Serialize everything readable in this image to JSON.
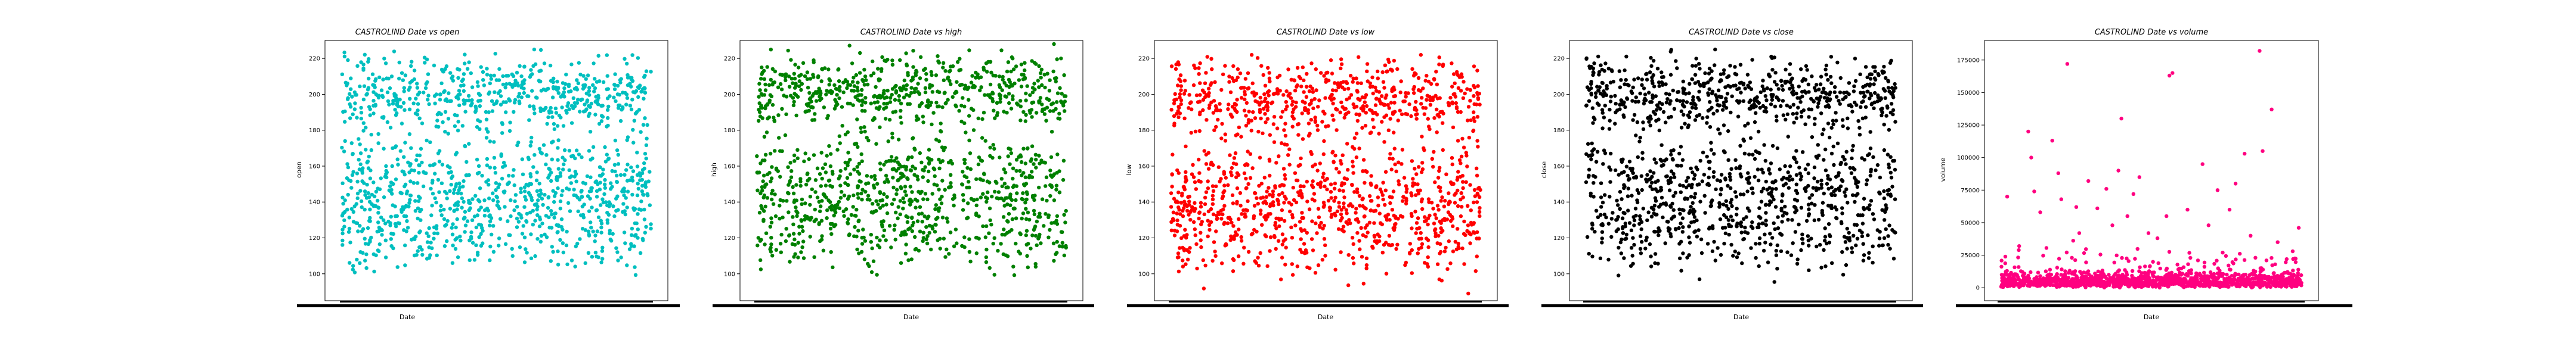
{
  "figure": {
    "charts": [
      {
        "title": "CASTROLIND Date vs open",
        "xlabel": "Date",
        "ylabel": "open"
      },
      {
        "title": "CASTROLIND Date vs high",
        "xlabel": "Date",
        "ylabel": "high"
      },
      {
        "title": "CASTROLIND Date vs low",
        "xlabel": "Date",
        "ylabel": "low"
      },
      {
        "title": "CASTROLIND Date vs close",
        "xlabel": "Date",
        "ylabel": "close"
      },
      {
        "title": "CASTROLIND Date vs volume",
        "xlabel": "Date",
        "ylabel": "volume"
      }
    ]
  },
  "chart_data": [
    {
      "type": "scatter",
      "title": "CASTROLIND Date vs open",
      "xlabel": "Date",
      "ylabel": "open",
      "color": "#00bfbf",
      "ylim": [
        85,
        230
      ],
      "yticks": [
        100,
        120,
        140,
        160,
        180,
        200,
        220
      ],
      "x_tick_labels_visible": false,
      "grid": false,
      "value_bands": [
        {
          "center": 200,
          "spread": 12,
          "share": 0.4
        },
        {
          "center": 152,
          "spread": 14,
          "share": 0.33
        },
        {
          "center": 125,
          "spread": 14,
          "share": 0.27
        }
      ],
      "range": [
        90,
        225
      ]
    },
    {
      "type": "scatter",
      "title": "CASTROLIND Date vs high",
      "xlabel": "Date",
      "ylabel": "high",
      "color": "#008000",
      "ylim": [
        85,
        230
      ],
      "yticks": [
        100,
        120,
        140,
        160,
        180,
        200,
        220
      ],
      "x_tick_labels_visible": false,
      "grid": false,
      "value_bands": [
        {
          "center": 202,
          "spread": 12,
          "share": 0.4
        },
        {
          "center": 154,
          "spread": 14,
          "share": 0.33
        },
        {
          "center": 127,
          "spread": 14,
          "share": 0.27
        }
      ],
      "range": [
        91,
        228
      ]
    },
    {
      "type": "scatter",
      "title": "CASTROLIND Date vs low",
      "xlabel": "Date",
      "ylabel": "low",
      "color": "#ff0000",
      "ylim": [
        85,
        230
      ],
      "yticks": [
        100,
        120,
        140,
        160,
        180,
        200,
        220
      ],
      "x_tick_labels_visible": false,
      "grid": false,
      "value_bands": [
        {
          "center": 198,
          "spread": 12,
          "share": 0.4
        },
        {
          "center": 150,
          "spread": 14,
          "share": 0.33
        },
        {
          "center": 123,
          "spread": 14,
          "share": 0.27
        }
      ],
      "range": [
        89,
        222
      ]
    },
    {
      "type": "scatter",
      "title": "CASTROLIND Date vs close",
      "xlabel": "Date",
      "ylabel": "close",
      "color": "#000000",
      "ylim": [
        85,
        230
      ],
      "yticks": [
        100,
        120,
        140,
        160,
        180,
        200,
        220
      ],
      "x_tick_labels_visible": false,
      "grid": false,
      "value_bands": [
        {
          "center": 200,
          "spread": 12,
          "share": 0.4
        },
        {
          "center": 152,
          "spread": 14,
          "share": 0.33
        },
        {
          "center": 125,
          "spread": 14,
          "share": 0.27
        }
      ],
      "range": [
        90,
        225
      ]
    },
    {
      "type": "scatter",
      "title": "CASTROLIND Date vs volume",
      "xlabel": "Date",
      "ylabel": "volume",
      "color": "#ff0080",
      "ylim": [
        -10000,
        190000
      ],
      "yticks": [
        0,
        25000,
        50000,
        75000,
        100000,
        125000,
        150000,
        175000
      ],
      "x_tick_labels_visible": false,
      "grid": false,
      "baseline": {
        "typical_max": 12000
      },
      "outliers": [
        {
          "xf": 0.02,
          "y": 70000
        },
        {
          "xf": 0.06,
          "y": 32000
        },
        {
          "xf": 0.09,
          "y": 120000
        },
        {
          "xf": 0.1,
          "y": 100000
        },
        {
          "xf": 0.11,
          "y": 74000
        },
        {
          "xf": 0.13,
          "y": 58000
        },
        {
          "xf": 0.17,
          "y": 113000
        },
        {
          "xf": 0.19,
          "y": 88000
        },
        {
          "xf": 0.2,
          "y": 68000
        },
        {
          "xf": 0.22,
          "y": 172000
        },
        {
          "xf": 0.25,
          "y": 62000
        },
        {
          "xf": 0.26,
          "y": 42000
        },
        {
          "xf": 0.29,
          "y": 82000
        },
        {
          "xf": 0.32,
          "y": 61000
        },
        {
          "xf": 0.35,
          "y": 76000
        },
        {
          "xf": 0.37,
          "y": 48000
        },
        {
          "xf": 0.39,
          "y": 90000
        },
        {
          "xf": 0.4,
          "y": 130000
        },
        {
          "xf": 0.42,
          "y": 55000
        },
        {
          "xf": 0.44,
          "y": 72000
        },
        {
          "xf": 0.46,
          "y": 85000
        },
        {
          "xf": 0.49,
          "y": 42000
        },
        {
          "xf": 0.52,
          "y": 38000
        },
        {
          "xf": 0.55,
          "y": 55000
        },
        {
          "xf": 0.56,
          "y": 163000
        },
        {
          "xf": 0.57,
          "y": 165000
        },
        {
          "xf": 0.62,
          "y": 60000
        },
        {
          "xf": 0.67,
          "y": 95000
        },
        {
          "xf": 0.69,
          "y": 48000
        },
        {
          "xf": 0.72,
          "y": 75000
        },
        {
          "xf": 0.76,
          "y": 60000
        },
        {
          "xf": 0.78,
          "y": 80000
        },
        {
          "xf": 0.81,
          "y": 103000
        },
        {
          "xf": 0.83,
          "y": 40000
        },
        {
          "xf": 0.86,
          "y": 182000
        },
        {
          "xf": 0.87,
          "y": 105000
        },
        {
          "xf": 0.9,
          "y": 137000
        },
        {
          "xf": 0.92,
          "y": 35000
        },
        {
          "xf": 0.95,
          "y": 22000
        },
        {
          "xf": 0.97,
          "y": 28000
        },
        {
          "xf": 0.99,
          "y": 46000
        }
      ]
    }
  ]
}
